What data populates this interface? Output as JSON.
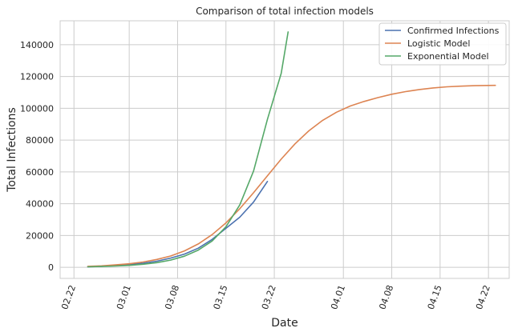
{
  "chart_data": {
    "type": "line",
    "title": "Comparison of total infection models",
    "xlabel": "Date",
    "ylabel": "Total Infections",
    "grid": true,
    "legend_position": "top-right",
    "x_axis": {
      "type": "date",
      "year": 2020,
      "min": "2020-02-20",
      "max": "2020-04-25"
    },
    "xticks": [
      {
        "date": "2020-02-22",
        "label": "02.22"
      },
      {
        "date": "2020-03-01",
        "label": "03.01"
      },
      {
        "date": "2020-03-08",
        "label": "03.08"
      },
      {
        "date": "2020-03-15",
        "label": "03.15"
      },
      {
        "date": "2020-03-22",
        "label": "03.22"
      },
      {
        "date": "2020-04-01",
        "label": "04.01"
      },
      {
        "date": "2020-04-08",
        "label": "04.08"
      },
      {
        "date": "2020-04-15",
        "label": "04.15"
      },
      {
        "date": "2020-04-22",
        "label": "04.22"
      }
    ],
    "ylim": [
      -7000,
      155000
    ],
    "yticks": [
      0,
      20000,
      40000,
      60000,
      80000,
      100000,
      120000,
      140000
    ],
    "series": [
      {
        "name": "Confirmed Infections",
        "color": "#4c72b0",
        "points": [
          [
            "2020-02-24",
            300
          ],
          [
            "2020-02-26",
            600
          ],
          [
            "2020-02-28",
            1000
          ],
          [
            "2020-03-01",
            1700
          ],
          [
            "2020-03-03",
            2500
          ],
          [
            "2020-03-05",
            3800
          ],
          [
            "2020-03-07",
            5800
          ],
          [
            "2020-03-09",
            8300
          ],
          [
            "2020-03-11",
            12000
          ],
          [
            "2020-03-13",
            17500
          ],
          [
            "2020-03-15",
            24500
          ],
          [
            "2020-03-17",
            31500
          ],
          [
            "2020-03-19",
            41000
          ],
          [
            "2020-03-21",
            54000
          ]
        ]
      },
      {
        "name": "Logistic Model",
        "color": "#dd8452",
        "points": [
          [
            "2020-02-24",
            600
          ],
          [
            "2020-02-26",
            900
          ],
          [
            "2020-02-28",
            1500
          ],
          [
            "2020-03-01",
            2200
          ],
          [
            "2020-03-03",
            3300
          ],
          [
            "2020-03-05",
            4900
          ],
          [
            "2020-03-07",
            7100
          ],
          [
            "2020-03-09",
            10300
          ],
          [
            "2020-03-11",
            14700
          ],
          [
            "2020-03-13",
            20500
          ],
          [
            "2020-03-15",
            27900
          ],
          [
            "2020-03-17",
            36800
          ],
          [
            "2020-03-19",
            46900
          ],
          [
            "2020-03-21",
            57500
          ],
          [
            "2020-03-23",
            68000
          ],
          [
            "2020-03-25",
            77600
          ],
          [
            "2020-03-27",
            85800
          ],
          [
            "2020-03-29",
            92400
          ],
          [
            "2020-03-31",
            97500
          ],
          [
            "2020-04-02",
            101400
          ],
          [
            "2020-04-04",
            104300
          ],
          [
            "2020-04-06",
            106700
          ],
          [
            "2020-04-08",
            108800
          ],
          [
            "2020-04-10",
            110500
          ],
          [
            "2020-04-12",
            111800
          ],
          [
            "2020-04-14",
            112800
          ],
          [
            "2020-04-16",
            113500
          ],
          [
            "2020-04-18",
            113900
          ],
          [
            "2020-04-20",
            114200
          ],
          [
            "2020-04-23",
            114400
          ]
        ]
      },
      {
        "name": "Exponential Model",
        "color": "#55a868",
        "points": [
          [
            "2020-02-24",
            300
          ],
          [
            "2020-02-26",
            500
          ],
          [
            "2020-02-28",
            800
          ],
          [
            "2020-03-01",
            1200
          ],
          [
            "2020-03-03",
            1900
          ],
          [
            "2020-03-05",
            2900
          ],
          [
            "2020-03-07",
            4500
          ],
          [
            "2020-03-09",
            7000
          ],
          [
            "2020-03-11",
            10800
          ],
          [
            "2020-03-13",
            16500
          ],
          [
            "2020-03-15",
            25500
          ],
          [
            "2020-03-17",
            39200
          ],
          [
            "2020-03-19",
            60500
          ],
          [
            "2020-03-21",
            93000
          ],
          [
            "2020-03-23",
            122000
          ],
          [
            "2020-03-24",
            148000
          ]
        ]
      }
    ]
  }
}
